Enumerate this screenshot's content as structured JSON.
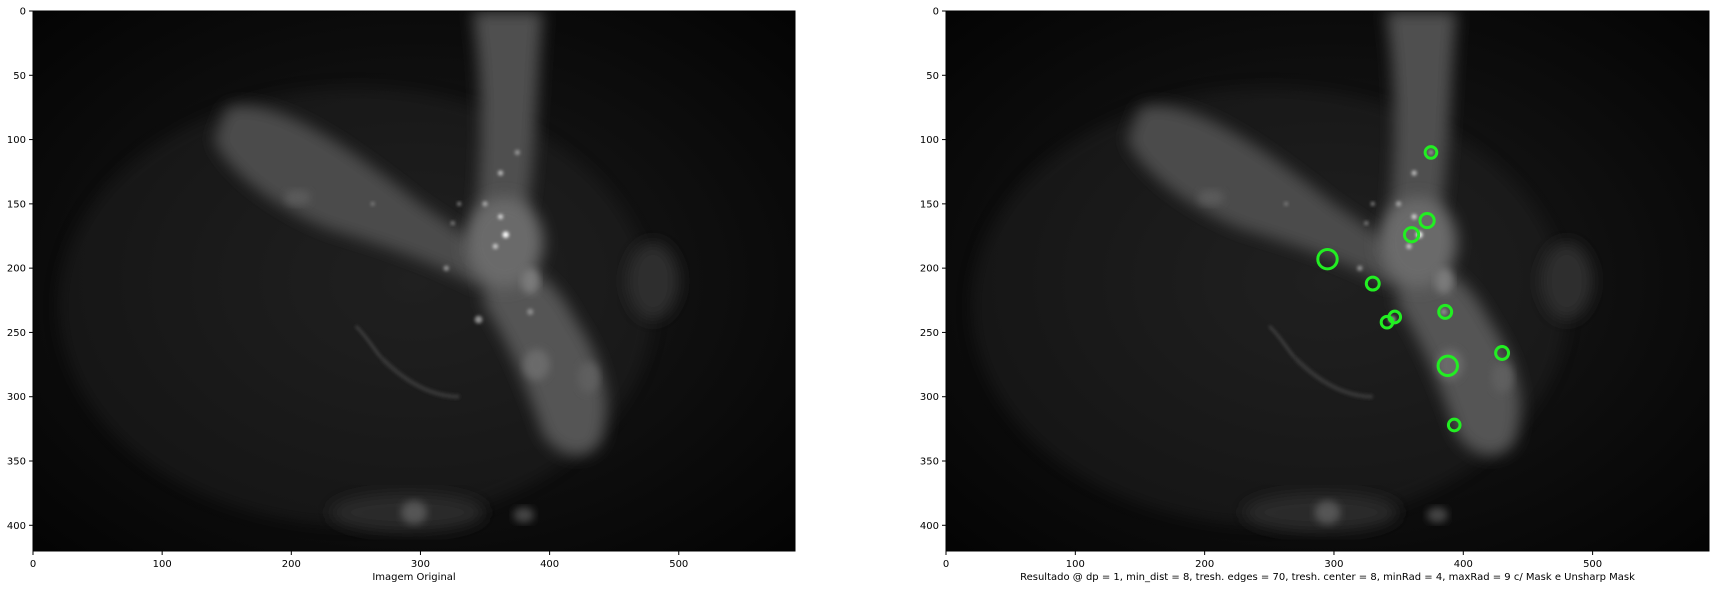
{
  "panels": [
    {
      "id": "left",
      "xlabel": "Imagem Original",
      "xlim": [
        0,
        590
      ],
      "ylim": [
        0,
        420
      ],
      "xticks": [
        0,
        100,
        200,
        300,
        400,
        500
      ],
      "yticks": [
        0,
        50,
        100,
        150,
        200,
        250,
        300,
        350,
        400
      ],
      "show_circles": false
    },
    {
      "id": "right",
      "xlabel": "Resultado @ dp = 1, min_dist = 8, tresh. edges  = 70, tresh. center = 8, minRad = 4, maxRad = 9 c/ Mask e Unsharp Mask",
      "xlim": [
        0,
        590
      ],
      "ylim": [
        0,
        420
      ],
      "xticks": [
        0,
        100,
        200,
        300,
        400,
        500
      ],
      "yticks": [
        0,
        50,
        100,
        150,
        200,
        250,
        300,
        350,
        400
      ],
      "show_circles": true
    }
  ],
  "detections": {
    "color": "#22ee22",
    "circles": [
      {
        "x": 375,
        "y": 110,
        "r": 4.5
      },
      {
        "x": 372,
        "y": 163,
        "r": 5.5
      },
      {
        "x": 360,
        "y": 174,
        "r": 5.5
      },
      {
        "x": 295,
        "y": 193,
        "r": 7.5
      },
      {
        "x": 330,
        "y": 212,
        "r": 5
      },
      {
        "x": 386,
        "y": 234,
        "r": 5
      },
      {
        "x": 347,
        "y": 238,
        "r": 4.5
      },
      {
        "x": 341,
        "y": 242,
        "r": 4.5
      },
      {
        "x": 430,
        "y": 266,
        "r": 5
      },
      {
        "x": 388,
        "y": 276,
        "r": 7.5
      },
      {
        "x": 393,
        "y": 322,
        "r": 4.5
      }
    ]
  }
}
